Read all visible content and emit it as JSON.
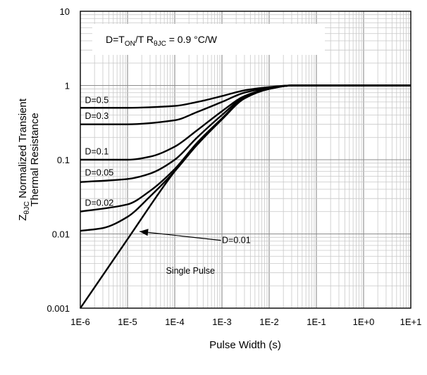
{
  "chart_data": {
    "type": "line",
    "xscale": "log",
    "yscale": "log",
    "xlim": [
      1e-06,
      10
    ],
    "ylim": [
      0.001,
      10
    ],
    "xticks": [
      "1E-6",
      "1E-5",
      "1E-4",
      "1E-3",
      "1E-2",
      "1E-1",
      "1E+0",
      "1E+1"
    ],
    "yticks": [
      "0.001",
      "0.01",
      "0.1",
      "1",
      "10"
    ],
    "xlabel": "Pulse Width (s)",
    "ylabel": {
      "line1_main": "Z",
      "line1_sub": "θJC",
      "line1_rest": " Normalized Transient",
      "line2": "Thermal Resistance"
    },
    "annotation": {
      "d_main": "D=T",
      "d_sub": "ON",
      "d_rest": "/T  R",
      "r_sub": "θJC",
      "r_rest": " = 0.9 °C/W"
    },
    "grid": true,
    "series": [
      {
        "name": "D=0.5",
        "x": [
          1e-06,
          1e-05,
          0.0001,
          0.0003,
          0.001,
          0.003,
          0.01,
          0.03,
          0.1,
          1,
          10
        ],
        "y": [
          0.5,
          0.5,
          0.53,
          0.6,
          0.72,
          0.86,
          0.95,
          1.0,
          1.0,
          1.0,
          1.0
        ]
      },
      {
        "name": "D=0.3",
        "x": [
          1e-06,
          1e-05,
          0.0001,
          0.0003,
          0.001,
          0.003,
          0.01,
          0.03,
          0.1,
          1,
          10
        ],
        "y": [
          0.3,
          0.3,
          0.34,
          0.44,
          0.6,
          0.8,
          0.93,
          1.0,
          1.0,
          1.0,
          1.0
        ]
      },
      {
        "name": "D=0.1",
        "x": [
          1e-06,
          1e-05,
          3e-05,
          0.0001,
          0.0003,
          0.001,
          0.003,
          0.01,
          0.03,
          0.1,
          1,
          10
        ],
        "y": [
          0.1,
          0.1,
          0.11,
          0.15,
          0.25,
          0.45,
          0.72,
          0.91,
          1.0,
          1.0,
          1.0,
          1.0
        ]
      },
      {
        "name": "D=0.05",
        "x": [
          1e-06,
          1e-05,
          3e-05,
          0.0001,
          0.0003,
          0.001,
          0.003,
          0.01,
          0.03,
          0.1,
          1,
          10
        ],
        "y": [
          0.05,
          0.055,
          0.065,
          0.1,
          0.2,
          0.4,
          0.7,
          0.9,
          1.0,
          1.0,
          1.0,
          1.0
        ]
      },
      {
        "name": "D=0.02",
        "x": [
          1e-06,
          1e-05,
          3e-05,
          0.0001,
          0.0003,
          0.001,
          0.003,
          0.01,
          0.03,
          0.1,
          1,
          10
        ],
        "y": [
          0.02,
          0.025,
          0.038,
          0.075,
          0.17,
          0.36,
          0.68,
          0.9,
          1.0,
          1.0,
          1.0,
          1.0
        ]
      },
      {
        "name": "D=0.01",
        "x": [
          1e-06,
          3e-06,
          1e-05,
          3e-05,
          0.0001,
          0.0003,
          0.001,
          0.003,
          0.01,
          0.03,
          0.1,
          1,
          10
        ],
        "y": [
          0.011,
          0.012,
          0.017,
          0.032,
          0.07,
          0.16,
          0.35,
          0.67,
          0.9,
          1.0,
          1.0,
          1.0,
          1.0
        ]
      },
      {
        "name": "Single Pulse",
        "x": [
          1e-06,
          1e-05,
          0.0001,
          0.0003,
          0.001,
          0.003,
          0.01,
          0.03,
          0.1,
          1,
          10
        ],
        "y": [
          0.001,
          0.0085,
          0.07,
          0.16,
          0.35,
          0.67,
          0.9,
          1.0,
          1.0,
          1.0,
          1.0
        ]
      }
    ],
    "labels": [
      {
        "text": "D=0.5",
        "x": 1.25e-06,
        "y": 0.58
      },
      {
        "text": "D=0.3",
        "x": 1.25e-06,
        "y": 0.355
      },
      {
        "text": "D=0.1",
        "x": 1.25e-06,
        "y": 0.118
      },
      {
        "text": "D=0.05",
        "x": 1.25e-06,
        "y": 0.061
      },
      {
        "text": "D=0.02",
        "x": 1.25e-06,
        "y": 0.024
      },
      {
        "text": "D=0.01",
        "x": 0.001,
        "y": 0.0075
      },
      {
        "text": "Single Pulse",
        "x": 6.5e-05,
        "y": 0.0029
      }
    ],
    "arrow": {
      "from": [
        0.00095,
        0.0082
      ],
      "to": [
        1.8e-05,
        0.0108
      ]
    }
  }
}
